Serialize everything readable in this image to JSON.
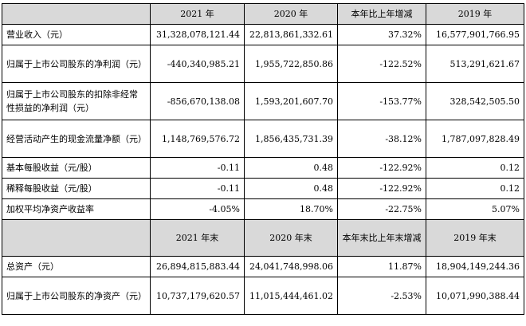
{
  "header1": [
    "",
    "2021 年",
    "2020 年",
    "本年比上年增减",
    "2019 年"
  ],
  "rows1": [
    {
      "label": "营业收入（元）",
      "v2021": "31,328,078,121.44",
      "v2020": "22,813,861,332.61",
      "change": "37.32%",
      "v2019": "16,577,901,766.95"
    },
    {
      "label": "归属于上市公司股东的净利润（元）",
      "v2021": "-440,340,985.21",
      "v2020": "1,955,722,850.86",
      "change": "-122.52%",
      "v2019": "513,291,621.67"
    },
    {
      "label": "归属于上市公司股东的扣除非经常性损益的净利润（元）",
      "v2021": "-856,670,138.08",
      "v2020": "1,593,201,607.70",
      "change": "-153.77%",
      "v2019": "328,542,505.50"
    },
    {
      "label": "经营活动产生的现金流量净额（元）",
      "v2021": "1,148,769,576.72",
      "v2020": "1,856,435,731.39",
      "change": "-38.12%",
      "v2019": "1,787,097,828.49"
    },
    {
      "label": "基本每股收益（元/股）",
      "v2021": "-0.11",
      "v2020": "0.48",
      "change": "-122.92%",
      "v2019": "0.12"
    },
    {
      "label": "稀释每股收益（元/股）",
      "v2021": "-0.11",
      "v2020": "0.48",
      "change": "-122.92%",
      "v2019": "0.12"
    },
    {
      "label": "加权平均净资产收益率",
      "v2021": "-4.05%",
      "v2020": "18.70%",
      "change": "-22.75%",
      "v2019": "5.07%"
    }
  ],
  "header2": [
    "",
    "2021 年末",
    "2020 年末",
    "本年末比上年末增减",
    "2019 年末"
  ],
  "rows2": [
    {
      "label": "总资产（元）",
      "v2021": "26,894,815,883.44",
      "v2020": "24,041,748,998.06",
      "change": "11.87%",
      "v2019": "18,904,149,244.36"
    },
    {
      "label": "归属于上市公司股东的净资产（元）",
      "v2021": "10,737,179,620.57",
      "v2020": "11,015,444,461.02",
      "change": "-2.53%",
      "v2019": "10,071,990,388.44"
    }
  ]
}
